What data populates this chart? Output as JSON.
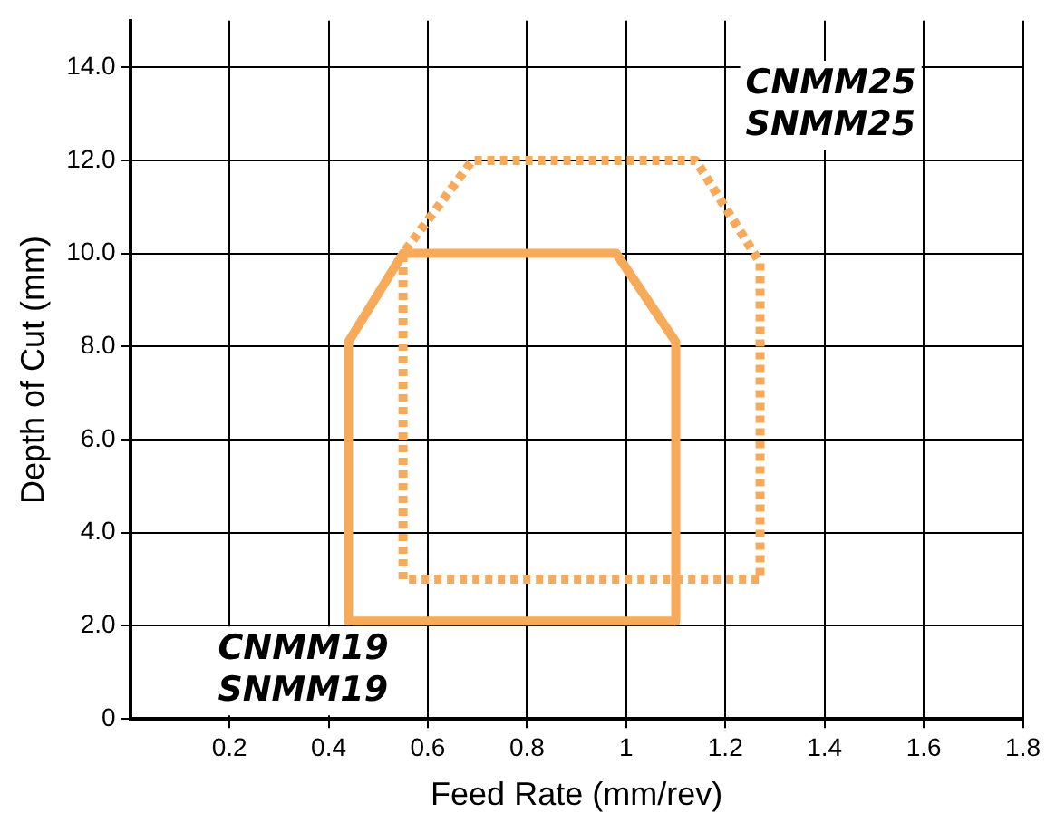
{
  "chart_data": {
    "type": "line",
    "xlabel": "Feed Rate (mm/rev)",
    "ylabel": "Depth of Cut (mm)",
    "xlim": [
      0,
      1.8
    ],
    "xticks": [
      0.2,
      0.4,
      0.6,
      0.8,
      1.0,
      1.2,
      1.4,
      1.6,
      1.8
    ],
    "ylim": [
      0,
      15
    ],
    "yticks": [
      0,
      {
        "value": 2,
        "label": "2.0"
      },
      {
        "value": 4,
        "label": "4.0"
      },
      {
        "value": 6,
        "label": "6.0"
      },
      {
        "value": 8,
        "label": "8.0"
      },
      {
        "value": 10,
        "label": "10.0"
      },
      {
        "value": 12,
        "label": "12.0"
      },
      {
        "value": 14,
        "label": "14.0"
      }
    ],
    "grid": true,
    "legend": false,
    "marker": "none",
    "series": [
      {
        "name": "CNMM19\nSNMM19",
        "color": "#f7aa5a",
        "line_style": "solid",
        "x": [
          0.44,
          0.44,
          0.55,
          0.98,
          1.1,
          1.1,
          0.45
        ],
        "values": [
          2.1,
          8.1,
          10.0,
          10.0,
          8.1,
          2.1,
          2.1
        ]
      },
      {
        "name": "CNMM25\nSNMM25",
        "color": "#f7aa5a",
        "line_style": "dotted",
        "x": [
          0.55,
          0.55,
          0.69,
          1.14,
          1.27,
          1.27,
          0.56
        ],
        "values": [
          3.0,
          10.0,
          12.0,
          12.0,
          9.8,
          3.0,
          3.0
        ]
      }
    ]
  }
}
